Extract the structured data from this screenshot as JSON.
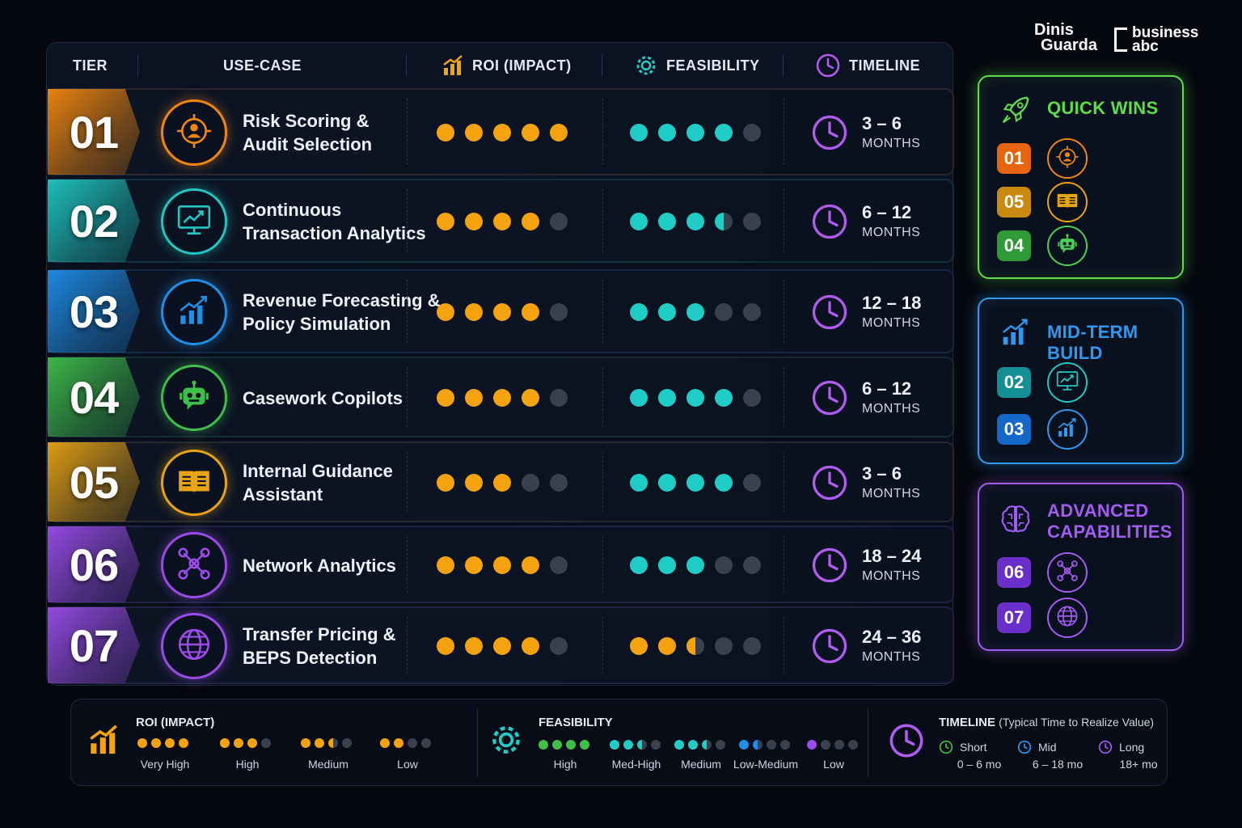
{
  "logos": {
    "dg_line1": "Dinis",
    "dg_line2": "Guarda",
    "babc_line1": "business",
    "babc_line2": "abc"
  },
  "header": {
    "tier": "TIER",
    "use_case": "USE-CASE",
    "roi": "ROI (IMPACT)",
    "feasibility": "FEASIBILITY",
    "timeline": "TIMELINE"
  },
  "rows": [
    {
      "tier": "01",
      "name": "Risk Scoring &\nAudit Selection",
      "roi": 5,
      "feasibility": 4,
      "timeline_range": "3 – 6",
      "timeline_unit": "MONTHS",
      "accent": "#f2870f",
      "icon": "target-person-icon"
    },
    {
      "tier": "02",
      "name": "Continuous\nTransaction Analytics",
      "roi": 4,
      "feasibility": 3.5,
      "timeline_range": "6 – 12",
      "timeline_unit": "MONTHS",
      "accent": "#1fc8c0",
      "icon": "monitor-chart-icon"
    },
    {
      "tier": "03",
      "name": "Revenue Forecasting &\nPolicy Simulation",
      "roi": 4,
      "feasibility": 3,
      "timeline_range": "12 – 18",
      "timeline_unit": "MONTHS",
      "accent": "#1f8fe8",
      "icon": "growth-chart-icon"
    },
    {
      "tier": "04",
      "name": "Casework Copilots",
      "roi": 4,
      "feasibility": 4,
      "timeline_range": "6 – 12",
      "timeline_unit": "MONTHS",
      "accent": "#3fbf4a",
      "icon": "robot-icon"
    },
    {
      "tier": "05",
      "name": "Internal Guidance\nAssistant",
      "roi": 3,
      "feasibility": 4,
      "timeline_range": "3 – 6",
      "timeline_unit": "MONTHS",
      "accent": "#e8a413",
      "icon": "book-icon"
    },
    {
      "tier": "06",
      "name": "Network Analytics",
      "roi": 4,
      "feasibility": 3,
      "timeline_range": "18 – 24",
      "timeline_unit": "MONTHS",
      "accent": "#9b4ce8",
      "icon": "network-icon"
    },
    {
      "tier": "07",
      "name": "Transfer Pricing &\nBEPS Detection",
      "roi": 4,
      "feasibility": 2.5,
      "feasibility_color": "#f5a20f",
      "timeline_range": "24 – 36",
      "timeline_unit": "MONTHS",
      "accent": "#9b4ce8",
      "icon": "globe-icon"
    }
  ],
  "colors": {
    "roi": "#f5a20f",
    "feasibility": "#20ccc6",
    "empty": "#3a414d",
    "timeline": "#b15cf0"
  },
  "panels": [
    {
      "title": "QUICK WINS",
      "color": "#5fdc4a",
      "icon": "rocket-icon",
      "items": [
        {
          "badge": "01",
          "badge_color": "#e8650f",
          "icon": "target-person-icon",
          "icon_color": "#f2870f"
        },
        {
          "badge": "05",
          "badge_color": "#c98a0e",
          "icon": "book-icon",
          "icon_color": "#e8a413"
        },
        {
          "badge": "04",
          "badge_color": "#2f9a38",
          "icon": "robot-icon",
          "icon_color": "#4ccf56"
        }
      ]
    },
    {
      "title": "MID-TERM BUILD",
      "color": "#2f98f0",
      "icon": "growth-chart-icon",
      "items": [
        {
          "badge": "02",
          "badge_color": "#138f95",
          "icon": "monitor-chart-icon",
          "icon_color": "#1fc8c0"
        },
        {
          "badge": "03",
          "badge_color": "#1668c8",
          "icon": "growth-chart-icon",
          "icon_color": "#2f98f0"
        }
      ]
    },
    {
      "title": "ADVANCED\nCAPABILITIES",
      "color": "#a25cf2",
      "icon": "brain-icon",
      "items": [
        {
          "badge": "06",
          "badge_color": "#6a2fc8",
          "icon": "network-icon",
          "icon_color": "#a25cf2"
        },
        {
          "badge": "07",
          "badge_color": "#6a2fc8",
          "icon": "globe-icon",
          "icon_color": "#a25cf2"
        }
      ]
    }
  ],
  "legend": {
    "roi_title": "ROI (IMPACT)",
    "roi_levels": [
      {
        "label": "Very High",
        "value": 4
      },
      {
        "label": "High",
        "value": 3
      },
      {
        "label": "Medium",
        "value": 2.5
      },
      {
        "label": "Low",
        "value": 2
      }
    ],
    "feas_title": "FEASIBILITY",
    "feas_levels": [
      {
        "label": "High",
        "value": 4,
        "color": "#3fbf4a"
      },
      {
        "label": "Med-High",
        "value": 2.5,
        "color": "#20ccc6"
      },
      {
        "label": "Medium",
        "value": 2.5,
        "color": "#20ccc6"
      },
      {
        "label": "Low-Medium",
        "value": 1.5,
        "color": "#1f8fe8"
      },
      {
        "label": "Low",
        "value": 1,
        "color": "#9b4ce8"
      }
    ],
    "timeline_title": "TIMELINE",
    "timeline_sub": "(Typical Time to Realize Value)",
    "timeline_levels": [
      {
        "label": "Short",
        "range": "0 – 6 mo",
        "color": "#3fbf4a"
      },
      {
        "label": "Mid",
        "range": "6 – 18 mo",
        "color": "#2f98f0"
      },
      {
        "label": "Long",
        "range": "18+ mo",
        "color": "#a25cf2"
      }
    ]
  }
}
